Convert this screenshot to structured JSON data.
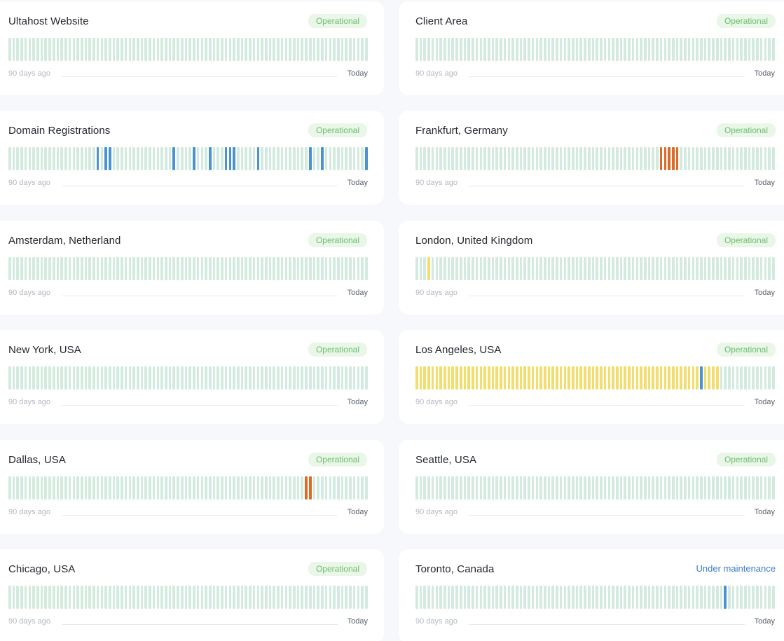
{
  "labels": {
    "days_ago": "90 days ago",
    "today": "Today"
  },
  "colors": {
    "ok": "#d3eadf",
    "blue": "#4a93d2",
    "orange": "#dd6a27",
    "yellow": "#f2dd6e"
  },
  "bar_count": 90,
  "services": [
    {
      "name": "Ultahost Website",
      "status": "Operational",
      "status_type": "operational",
      "incidents": {}
    },
    {
      "name": "Client Area",
      "status": "Operational",
      "status_type": "operational",
      "incidents": {}
    },
    {
      "name": "Domain Registrations",
      "status": "Operational",
      "status_type": "operational",
      "incidents": {
        "22": "blue",
        "24": "blue",
        "25": "blue",
        "41": "blue",
        "46": "blue",
        "50": "blue",
        "54": "blue",
        "55": "blue",
        "56": "blue",
        "62": "blue",
        "75": "blue",
        "78": "blue",
        "89": "blue"
      }
    },
    {
      "name": "Frankfurt, Germany",
      "status": "Operational",
      "status_type": "operational",
      "incidents": {
        "61": "orange",
        "62": "orange",
        "63": "orange",
        "64": "orange",
        "65": "orange"
      }
    },
    {
      "name": "Amsterdam, Netherland",
      "status": "Operational",
      "status_type": "operational",
      "incidents": {}
    },
    {
      "name": "London, United Kingdom",
      "status": "Operational",
      "status_type": "operational",
      "incidents": {
        "3": "yellow"
      }
    },
    {
      "name": "New York, USA",
      "status": "Operational",
      "status_type": "operational",
      "incidents": {}
    },
    {
      "name": "Los Angeles, USA",
      "status": "Operational",
      "status_type": "operational",
      "incidents_range": {
        "from": 0,
        "to": 75,
        "color": "yellow"
      },
      "incidents": {
        "71": "blue"
      }
    },
    {
      "name": "Dallas, USA",
      "status": "Operational",
      "status_type": "operational",
      "incidents": {
        "74": "orange",
        "75": "orange"
      }
    },
    {
      "name": "Seattle, USA",
      "status": "Operational",
      "status_type": "operational",
      "incidents": {}
    },
    {
      "name": "Chicago, USA",
      "status": "Operational",
      "status_type": "operational",
      "incidents": {}
    },
    {
      "name": "Toronto, Canada",
      "status": "Under maintenance",
      "status_type": "maintenance",
      "incidents": {
        "77": "blue"
      }
    }
  ]
}
